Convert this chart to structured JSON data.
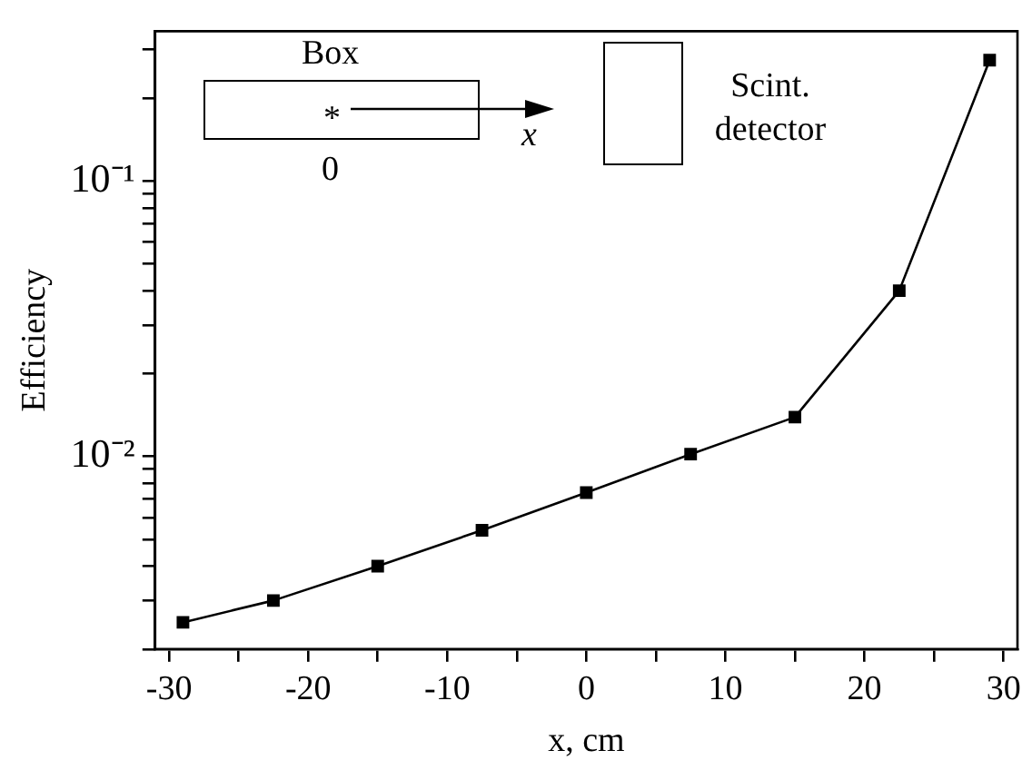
{
  "chart_data": {
    "type": "line",
    "xlabel": "x, cm",
    "ylabel": "Efficiency",
    "log": "y",
    "marker": "square",
    "line_style": "solid",
    "x": [
      -29,
      -22.5,
      -15,
      -7.5,
      0,
      7.5,
      15,
      22.5,
      29
    ],
    "series": [
      {
        "color": "#000000",
        "values": [
          0.0025,
          0.003,
          0.004,
          0.0054,
          0.0074,
          0.0102,
          0.0139,
          0.04,
          0.275
        ]
      }
    ],
    "xlim": [
      -31,
      31
    ],
    "xticks": [
      -30,
      {
        "value": -25,
        "label": null
      },
      -20,
      {
        "value": -15,
        "label": null
      },
      -10,
      {
        "value": -5,
        "label": null
      },
      0,
      {
        "value": 5,
        "label": null
      },
      10,
      {
        "value": 15,
        "label": null
      },
      20,
      {
        "value": 25,
        "label": null
      },
      30
    ],
    "ylim": [
      0.002,
      0.35
    ],
    "yticks": [
      {
        "value": 0.002,
        "label": null
      },
      {
        "value": 0.003,
        "label": null
      },
      {
        "value": 0.004,
        "label": null
      },
      {
        "value": 0.005,
        "label": null
      },
      {
        "value": 0.006,
        "label": null
      },
      {
        "value": 0.007,
        "label": null
      },
      {
        "value": 0.008,
        "label": null
      },
      {
        "value": 0.009,
        "label": null
      },
      {
        "value": 0.01,
        "label": "10⁻²"
      },
      {
        "value": 0.02,
        "label": null
      },
      {
        "value": 0.03,
        "label": null
      },
      {
        "value": 0.04,
        "label": null
      },
      {
        "value": 0.05,
        "label": null
      },
      {
        "value": 0.06,
        "label": null
      },
      {
        "value": 0.07,
        "label": null
      },
      {
        "value": 0.08,
        "label": null
      },
      {
        "value": 0.09,
        "label": null
      },
      {
        "value": 0.1,
        "label": "10⁻¹"
      },
      {
        "value": 0.2,
        "label": null
      },
      {
        "value": 0.3,
        "label": null
      }
    ],
    "legend": false,
    "annotations": [
      "Box",
      "*",
      "0",
      "x",
      "Scint. detector"
    ]
  }
}
